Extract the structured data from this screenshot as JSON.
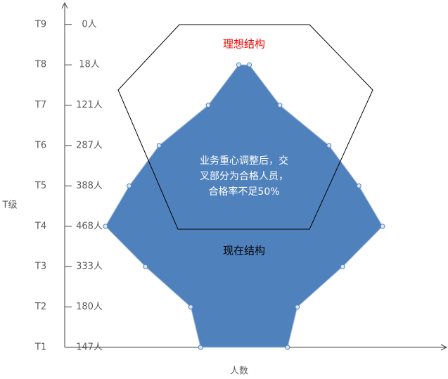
{
  "chart_data": {
    "type": "mirrored-area",
    "categories": [
      "T1",
      "T2",
      "T3",
      "T4",
      "T5",
      "T6",
      "T7",
      "T8",
      "T9"
    ],
    "values": [
      147,
      180,
      333,
      468,
      388,
      287,
      121,
      18,
      0
    ],
    "value_labels": [
      "147人",
      "180人",
      "333人",
      "468人",
      "388人",
      "287人",
      "121人",
      "18人",
      "0人"
    ],
    "color": "#4f81bd",
    "y_label": "T级",
    "x_label": "人数",
    "ideal_label": "理想结构",
    "current_label": "现在结构",
    "annotation": [
      "业务重心调整后，交",
      "叉部分为合格人员，",
      "合格率不足50%"
    ]
  }
}
